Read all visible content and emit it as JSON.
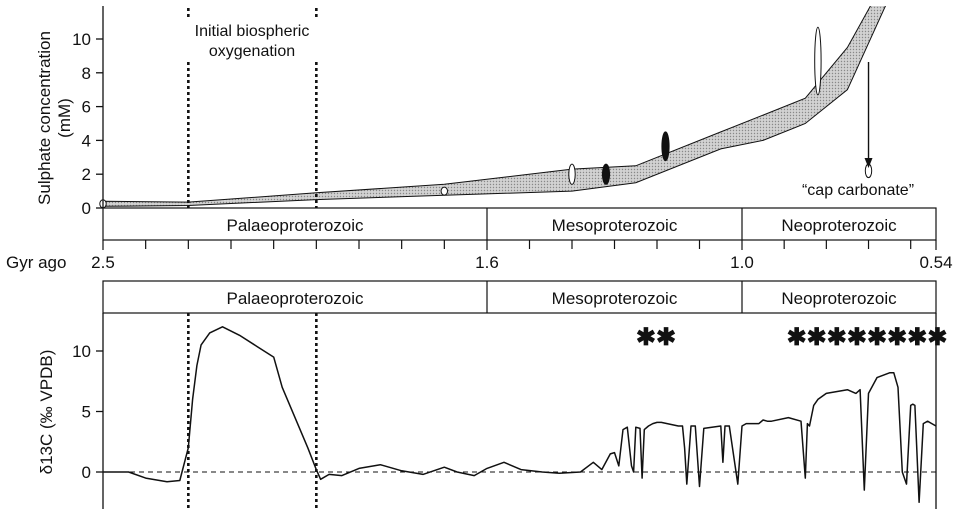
{
  "colors": {
    "ink": "#111111",
    "band_fill": "#d2d2d2",
    "background": "#ffffff"
  },
  "eras": [
    {
      "name": "Palaeoproterozoic",
      "start_gyr": 2.5,
      "end_gyr": 1.6
    },
    {
      "name": "Mesoproterozoic",
      "start_gyr": 1.6,
      "end_gyr": 1.0
    },
    {
      "name": "Neoproterozoic",
      "start_gyr": 1.0,
      "end_gyr": 0.54
    }
  ],
  "time_axis": {
    "label": "Gyr ago",
    "tick_labels": [
      "2.5",
      "1.6",
      "1.0",
      "0.54"
    ],
    "tick_values": [
      2.5,
      1.6,
      1.0,
      0.54
    ],
    "minor_step": 0.1
  },
  "annotations": {
    "oxygenation_line1": "Initial biospheric",
    "oxygenation_line2": "oxygenation",
    "oxygenation_start_gyr": 2.3,
    "oxygenation_end_gyr": 2.0,
    "cap_carbonate": "“cap carbonate”",
    "cap_carbonate_gyr": 0.7,
    "asterisks_meso": "✱✱",
    "asterisks_neo": "✱✱✱✱✱✱✱✱"
  },
  "chart_data": [
    {
      "type": "area",
      "ylabel_line1": "Sulphate concentration",
      "ylabel_line2": "(mM)",
      "xlim": [
        2.5,
        0.54
      ],
      "ylim": [
        0,
        12
      ],
      "yticks": [
        0,
        2,
        4,
        6,
        8,
        10
      ],
      "ytick_labels": [
        "0",
        "2",
        "4",
        "6",
        "8",
        "10"
      ],
      "band": {
        "x": [
          2.5,
          2.3,
          2.0,
          1.7,
          1.4,
          1.25,
          1.05,
          0.95,
          0.85,
          0.75,
          0.65,
          0.6
        ],
        "lower": [
          0.1,
          0.15,
          0.5,
          0.75,
          1.0,
          1.5,
          3.5,
          4.0,
          5.0,
          7.0,
          12.5,
          13.5
        ],
        "upper": [
          0.4,
          0.35,
          0.9,
          1.4,
          2.3,
          2.5,
          4.5,
          5.5,
          6.5,
          9.5,
          14.0,
          15.0
        ]
      },
      "measurements": [
        {
          "x": 2.5,
          "low": 0.1,
          "high": 0.4,
          "fill": "white"
        },
        {
          "x": 1.7,
          "low": 0.8,
          "high": 1.2,
          "fill": "white"
        },
        {
          "x": 1.4,
          "low": 1.4,
          "high": 2.6,
          "fill": "white"
        },
        {
          "x": 1.32,
          "low": 1.4,
          "high": 2.6,
          "fill": "black"
        },
        {
          "x": 1.18,
          "low": 2.8,
          "high": 4.5,
          "fill": "black"
        },
        {
          "x": 0.82,
          "low": 6.7,
          "high": 10.7,
          "fill": "white"
        },
        {
          "x": 0.7,
          "low": 1.8,
          "high": 2.6,
          "fill": "white"
        }
      ]
    },
    {
      "type": "line",
      "ylabel": "δ13C (‰ VPDB)",
      "xlim": [
        2.5,
        0.54
      ],
      "ylim": [
        -3,
        13
      ],
      "yticks": [
        0,
        5,
        10
      ],
      "ytick_labels": [
        "0",
        "5",
        "10"
      ],
      "zero_reference": 0,
      "series": [
        {
          "x": [
            2.5,
            2.44,
            2.4,
            2.35,
            2.32,
            2.3,
            2.29,
            2.28,
            2.27,
            2.25,
            2.22,
            2.18,
            2.14,
            2.1,
            2.08,
            2.05,
            2.02,
            2.0,
            1.99,
            1.97,
            1.94,
            1.9,
            1.85,
            1.8,
            1.75,
            1.7,
            1.67,
            1.63,
            1.6,
            1.56,
            1.52,
            1.47,
            1.43,
            1.38,
            1.35,
            1.33,
            1.31,
            1.3,
            1.29,
            1.28,
            1.27,
            1.26,
            1.255,
            1.25,
            1.24,
            1.235,
            1.23,
            1.22,
            1.21,
            1.2,
            1.19,
            1.15,
            1.14,
            1.135,
            1.13,
            1.12,
            1.11,
            1.1,
            1.09,
            1.05,
            1.045,
            1.04,
            1.03,
            1.01,
            1.0,
            0.99,
            0.985,
            0.98,
            0.96,
            0.95,
            0.94,
            0.93,
            0.89,
            0.86,
            0.85,
            0.845,
            0.84,
            0.83,
            0.82,
            0.8,
            0.75,
            0.73,
            0.72,
            0.71,
            0.7,
            0.68,
            0.65,
            0.64,
            0.63,
            0.62,
            0.61,
            0.6,
            0.595,
            0.59,
            0.58,
            0.57,
            0.56,
            0.55,
            0.54
          ],
          "values": [
            0,
            0,
            -0.5,
            -0.8,
            -0.7,
            2,
            6,
            8.8,
            10.5,
            11.5,
            12,
            11.3,
            10.4,
            9.5,
            7.0,
            4.5,
            2.0,
            0.2,
            -0.6,
            -0.2,
            -0.3,
            0.3,
            0.6,
            0.1,
            -0.2,
            0.4,
            0,
            -0.3,
            0.3,
            0.8,
            0.2,
            0,
            -0.1,
            0,
            0.8,
            0.2,
            1.5,
            1.6,
            0.5,
            3.5,
            3.7,
            0.5,
            0,
            3.7,
            3.6,
            -0.5,
            3.5,
            3.8,
            4.0,
            4.1,
            4.1,
            3.8,
            3.8,
            2.0,
            -1.0,
            3.8,
            3.8,
            -1.2,
            3.6,
            3.8,
            0.8,
            3.8,
            3.8,
            -1.0,
            3.8,
            4.0,
            4.0,
            4.0,
            4.0,
            4.3,
            4.2,
            4.2,
            4.5,
            4.2,
            -0.5,
            4.0,
            3.8,
            5.5,
            6.0,
            6.5,
            6.8,
            6.5,
            6.8,
            -1.5,
            6.5,
            7.8,
            8.2,
            8.2,
            7.0,
            0,
            -1.0,
            5.5,
            5.6,
            5.5,
            -2.5,
            4.0,
            4.2,
            4.0,
            3.8
          ]
        }
      ]
    }
  ]
}
